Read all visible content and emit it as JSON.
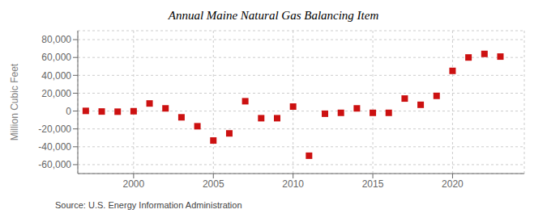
{
  "chart_data": {
    "type": "scatter",
    "title": "Annual Maine Natural Gas Balancing Item",
    "y_label": "Million Cubic Feet",
    "annotations": [
      "Source: U.S. Energy Information Administration"
    ],
    "x": [
      1997,
      1998,
      1999,
      2000,
      2001,
      2002,
      2003,
      2004,
      2005,
      2006,
      2007,
      2008,
      2009,
      2010,
      2011,
      2012,
      2013,
      2014,
      2015,
      2016,
      2017,
      2018,
      2019,
      2020,
      2021,
      2022,
      2023
    ],
    "values": [
      200,
      -500,
      -700,
      -200,
      8500,
      3000,
      -7000,
      -17000,
      -33000,
      -25000,
      11000,
      -8000,
      -8000,
      5000,
      -50000,
      -3000,
      -2000,
      3000,
      -2000,
      -2000,
      14000,
      7000,
      17000,
      45000,
      60000,
      64000,
      61000
    ],
    "color": "#cc1111",
    "marker": "square",
    "xlim": [
      1996.5,
      2024.5
    ],
    "xticks": [
      2000,
      2005,
      2010,
      2015,
      2020
    ],
    "ylim": [
      -70000,
      90000
    ],
    "yticks": [
      {
        "value": -60000,
        "label": "-60,000"
      },
      {
        "value": -40000,
        "label": "-40,000"
      },
      {
        "value": -20000,
        "label": "-20,000"
      },
      0,
      {
        "value": 20000,
        "label": "20,000"
      },
      {
        "value": 40000,
        "label": "40,000"
      },
      {
        "value": 60000,
        "label": "60,000"
      },
      {
        "value": 80000,
        "label": "80,000"
      }
    ],
    "grid": true
  }
}
